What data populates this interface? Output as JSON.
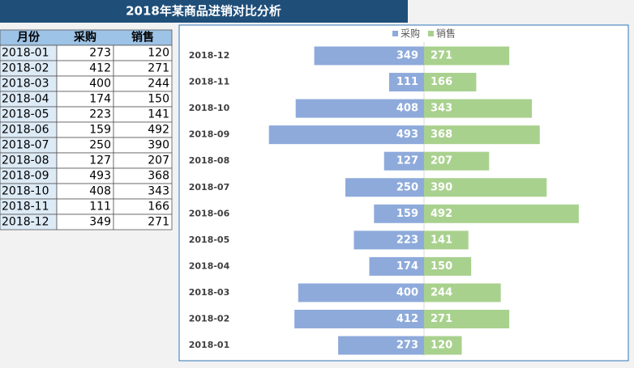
{
  "title": "2018年某商品进销对比分析",
  "table": {
    "month_header": "月份"
  },
  "chart_data": {
    "type": "butterfly",
    "categories": [
      "2018-01",
      "2018-02",
      "2018-03",
      "2018-04",
      "2018-05",
      "2018-06",
      "2018-07",
      "2018-08",
      "2018-09",
      "2018-10",
      "2018-11",
      "2018-12"
    ],
    "series": [
      {
        "name": "采购",
        "color": "#8eaadb",
        "values": [
          273,
          412,
          400,
          174,
          223,
          159,
          250,
          127,
          493,
          408,
          111,
          349
        ]
      },
      {
        "name": "销售",
        "color": "#a9d18e",
        "values": [
          120,
          271,
          244,
          150,
          141,
          492,
          390,
          207,
          368,
          343,
          166,
          271
        ]
      }
    ],
    "legend": "top"
  }
}
